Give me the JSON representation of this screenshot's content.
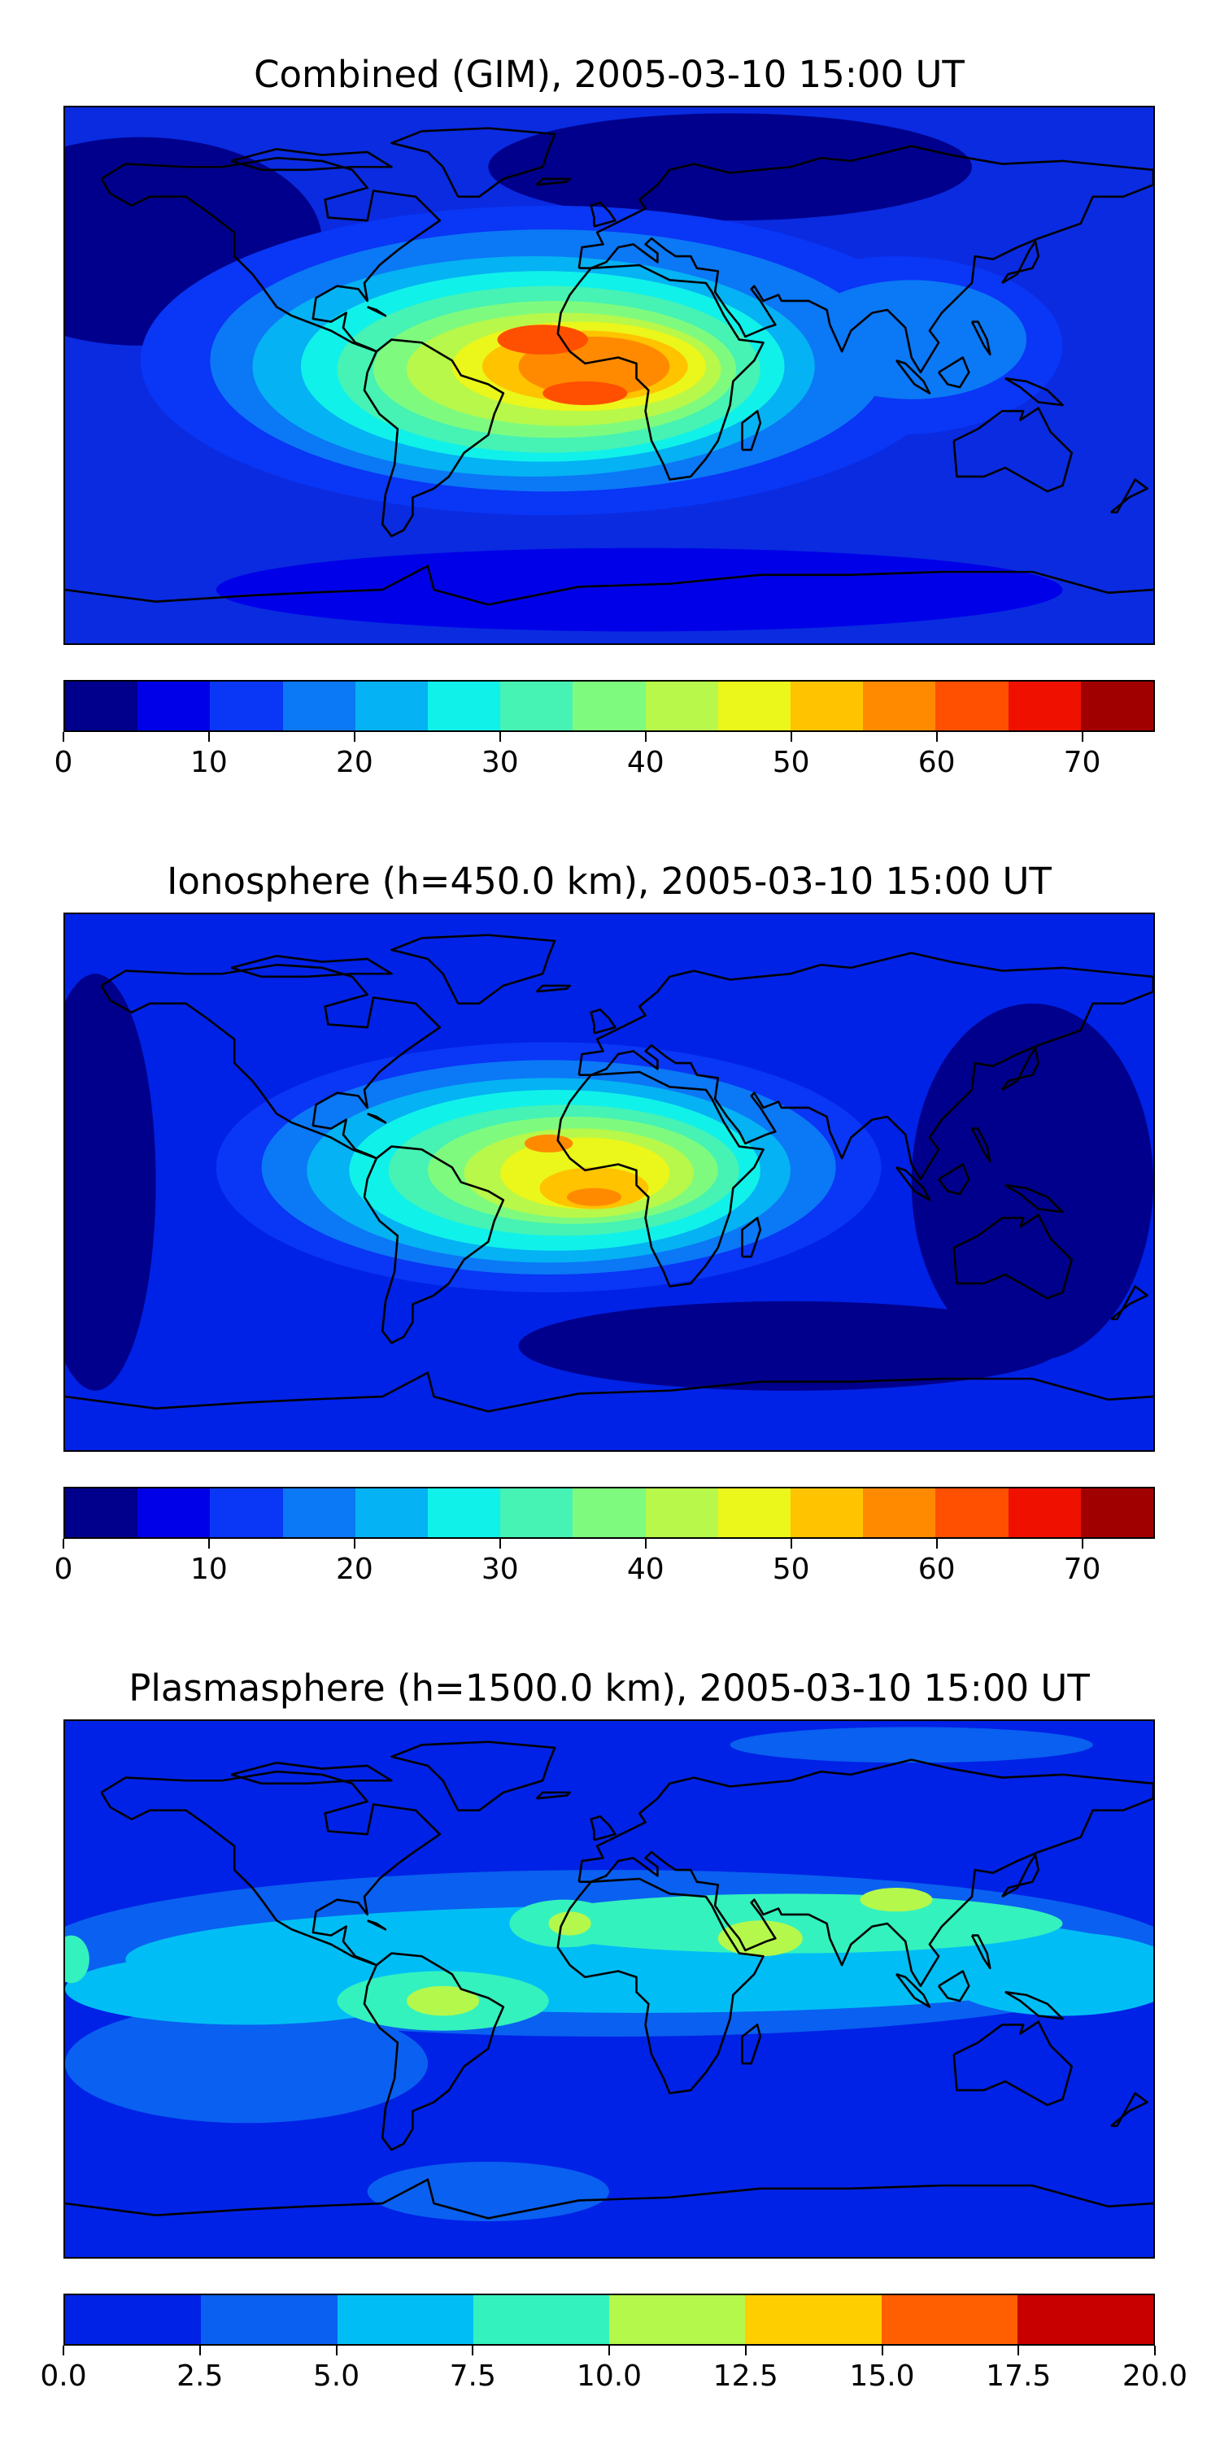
{
  "panels": [
    {
      "id": "combined",
      "title": "Combined (GIM), 2005-03-10 15:00 UT",
      "background": "#0a2be0",
      "colorbar": {
        "bounds": [
          0,
          75
        ],
        "step": 5,
        "colors": [
          "#00008c",
          "#0000e8",
          "#0a36f5",
          "#0b78f6",
          "#05b2f3",
          "#10f1ea",
          "#46f2b4",
          "#7efb7e",
          "#b7f84a",
          "#ebf61a",
          "#ffc300",
          "#ff8a00",
          "#ff4f00",
          "#ef1000",
          "#a00000"
        ],
        "ticks": [
          "0",
          "10",
          "20",
          "30",
          "40",
          "50",
          "60",
          "70"
        ],
        "tick_values": [
          0,
          10,
          20,
          30,
          40,
          50,
          60,
          70
        ]
      },
      "blobs": [
        {
          "lon": -155,
          "lat": 45,
          "rx": 60,
          "ry": 35,
          "level": 0
        },
        {
          "lon": 40,
          "lat": 70,
          "rx": 80,
          "ry": 18,
          "level": 0
        },
        {
          "lon": 10,
          "lat": -72,
          "rx": 140,
          "ry": 14,
          "level": 1
        },
        {
          "lon": -20,
          "lat": 5,
          "rx": 135,
          "ry": 52,
          "level": 2
        },
        {
          "lon": 95,
          "lat": 10,
          "rx": 55,
          "ry": 30,
          "level": 2
        },
        {
          "lon": -20,
          "lat": 5,
          "rx": 112,
          "ry": 44,
          "level": 3
        },
        {
          "lon": 100,
          "lat": 12,
          "rx": 38,
          "ry": 20,
          "level": 3
        },
        {
          "lon": -25,
          "lat": 3,
          "rx": 93,
          "ry": 37,
          "level": 4
        },
        {
          "lon": -22,
          "lat": 3,
          "rx": 80,
          "ry": 32,
          "level": 5
        },
        {
          "lon": -20,
          "lat": 2,
          "rx": 70,
          "ry": 28,
          "level": 6
        },
        {
          "lon": -18,
          "lat": 2,
          "rx": 60,
          "ry": 23,
          "level": 7
        },
        {
          "lon": -15,
          "lat": 2,
          "rx": 52,
          "ry": 19,
          "level": 8
        },
        {
          "lon": -10,
          "lat": 3,
          "rx": 42,
          "ry": 15,
          "level": 9
        },
        {
          "lon": -8,
          "lat": 3,
          "rx": 34,
          "ry": 12,
          "level": 10
        },
        {
          "lon": -5,
          "lat": 3,
          "rx": 25,
          "ry": 10,
          "level": 11
        },
        {
          "lon": -22,
          "lat": 12,
          "rx": 15,
          "ry": 5,
          "level": 12
        },
        {
          "lon": -8,
          "lat": -6,
          "rx": 14,
          "ry": 4,
          "level": 12
        }
      ]
    },
    {
      "id": "ionosphere",
      "title": "Ionosphere  (h=450.0 km), 2005-03-10 15:00 UT",
      "background": "#0022e6",
      "colorbar": {
        "bounds": [
          0,
          75
        ],
        "step": 5,
        "colors": [
          "#00008c",
          "#0000e8",
          "#0a36f5",
          "#0b78f6",
          "#05b2f3",
          "#10f1ea",
          "#46f2b4",
          "#7efb7e",
          "#b7f84a",
          "#ebf61a",
          "#ffc300",
          "#ff8a00",
          "#ff4f00",
          "#ef1000",
          "#a00000"
        ],
        "ticks": [
          "0",
          "10",
          "20",
          "30",
          "40",
          "50",
          "60",
          "70"
        ],
        "tick_values": [
          0,
          10,
          20,
          30,
          40,
          50,
          60,
          70
        ]
      },
      "blobs": [
        {
          "lon": -170,
          "lat": 0,
          "rx": 20,
          "ry": 70,
          "level": 0
        },
        {
          "lon": 140,
          "lat": 0,
          "rx": 40,
          "ry": 60,
          "level": 0
        },
        {
          "lon": 60,
          "lat": -55,
          "rx": 90,
          "ry": 15,
          "level": 0
        },
        {
          "lon": -20,
          "lat": 5,
          "rx": 110,
          "ry": 42,
          "level": 2
        },
        {
          "lon": -20,
          "lat": 5,
          "rx": 95,
          "ry": 36,
          "level": 3
        },
        {
          "lon": -20,
          "lat": 4,
          "rx": 80,
          "ry": 31,
          "level": 4
        },
        {
          "lon": -18,
          "lat": 4,
          "rx": 68,
          "ry": 27,
          "level": 5
        },
        {
          "lon": -15,
          "lat": 4,
          "rx": 58,
          "ry": 22,
          "level": 6
        },
        {
          "lon": -12,
          "lat": 4,
          "rx": 48,
          "ry": 18,
          "level": 7
        },
        {
          "lon": -10,
          "lat": 3,
          "rx": 38,
          "ry": 15,
          "level": 8
        },
        {
          "lon": -8,
          "lat": 3,
          "rx": 28,
          "ry": 12,
          "level": 9
        },
        {
          "lon": -5,
          "lat": -2,
          "rx": 18,
          "ry": 7,
          "level": 10
        },
        {
          "lon": -20,
          "lat": 13,
          "rx": 8,
          "ry": 3,
          "level": 11
        },
        {
          "lon": -5,
          "lat": -5,
          "rx": 9,
          "ry": 3,
          "level": 11
        }
      ]
    },
    {
      "id": "plasmasphere",
      "title": "Plasmasphere (h=1500.0 km), 2005-03-10 15:00 UT",
      "background": "#0022e6",
      "colorbar": {
        "bounds": [
          0,
          20
        ],
        "step": 2.5,
        "colors": [
          "#0022e6",
          "#0a60f0",
          "#00bef5",
          "#34f2be",
          "#b4f84c",
          "#ffce00",
          "#ff5f00",
          "#c80000"
        ],
        "ticks": [
          "0.0",
          "2.5",
          "5.0",
          "7.5",
          "10.0",
          "12.5",
          "15.0",
          "17.5",
          "20.0"
        ],
        "tick_values": [
          0,
          2.5,
          5,
          7.5,
          10,
          12.5,
          15,
          17.5,
          20
        ]
      },
      "blobs": [
        {
          "lon": 100,
          "lat": 82,
          "rx": 60,
          "ry": 6,
          "level": 1
        },
        {
          "lon": 0,
          "lat": 12,
          "rx": 190,
          "ry": 28,
          "level": 1
        },
        {
          "lon": -120,
          "lat": -25,
          "rx": 60,
          "ry": 20,
          "level": 1
        },
        {
          "lon": -40,
          "lat": -68,
          "rx": 40,
          "ry": 10,
          "level": 1
        },
        {
          "lon": 10,
          "lat": 10,
          "rx": 170,
          "ry": 18,
          "level": 2
        },
        {
          "lon": -120,
          "lat": 0,
          "rx": 60,
          "ry": 12,
          "level": 2
        },
        {
          "lon": 150,
          "lat": 5,
          "rx": 40,
          "ry": 14,
          "level": 2
        },
        {
          "lon": 60,
          "lat": 22,
          "rx": 90,
          "ry": 10,
          "level": 3
        },
        {
          "lon": -55,
          "lat": -4,
          "rx": 35,
          "ry": 10,
          "level": 3
        },
        {
          "lon": -15,
          "lat": 22,
          "rx": 18,
          "ry": 8,
          "level": 3
        },
        {
          "lon": -178,
          "lat": 10,
          "rx": 6,
          "ry": 8,
          "level": 3
        },
        {
          "lon": -55,
          "lat": -4,
          "rx": 12,
          "ry": 5,
          "level": 4
        },
        {
          "lon": -13,
          "lat": 22,
          "rx": 7,
          "ry": 4,
          "level": 4
        },
        {
          "lon": 50,
          "lat": 17,
          "rx": 14,
          "ry": 6,
          "level": 4
        },
        {
          "lon": 95,
          "lat": 30,
          "rx": 12,
          "ry": 4,
          "level": 4
        }
      ]
    }
  ]
}
